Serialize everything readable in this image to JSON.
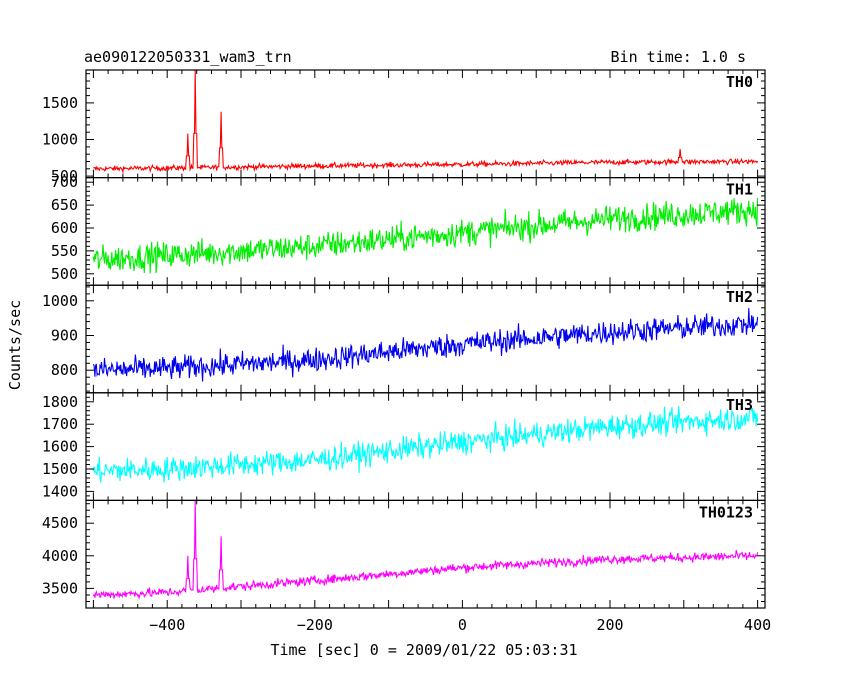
{
  "header": {
    "title": "ae090122050331_wam3_trn",
    "bin_time": "Bin time: 1.0 s"
  },
  "chart_data": {
    "type": "line",
    "xlabel": "Time [sec] 0 = 2009/01/22 05:03:31",
    "ylabel": "Counts/sec",
    "xlim": [
      -510,
      410
    ],
    "x_ticks": [
      -400,
      -200,
      0,
      200,
      400
    ],
    "x_tick_labels": [
      "−400",
      "−200",
      "0",
      "200",
      "400"
    ],
    "x_range": [
      -500,
      400
    ],
    "panels": [
      {
        "name": "TH0",
        "color": "#ff0000",
        "ylim": [
          480,
          1950
        ],
        "y_ticks": [
          500,
          1000,
          1500
        ],
        "trend": {
          "x": [
            -500,
            -400,
            -200,
            0,
            200,
            400
          ],
          "y": [
            600,
            610,
            640,
            660,
            690,
            700
          ]
        },
        "noise": 35,
        "spikes": [
          {
            "x": -372,
            "y": 1080
          },
          {
            "x": -362,
            "y": 1950
          },
          {
            "x": -327,
            "y": 1380
          },
          {
            "x": 295,
            "y": 870
          }
        ]
      },
      {
        "name": "TH1",
        "color": "#00ee00",
        "ylim": [
          475,
          710
        ],
        "y_ticks": [
          500,
          550,
          600,
          650,
          700
        ],
        "trend": {
          "x": [
            -500,
            -400,
            -200,
            0,
            200,
            400
          ],
          "y": [
            530,
            540,
            560,
            590,
            620,
            640
          ]
        },
        "noise": 30,
        "spikes": []
      },
      {
        "name": "TH2",
        "color": "#0000ee",
        "ylim": [
          735,
          1045
        ],
        "y_ticks": [
          800,
          900,
          1000
        ],
        "trend": {
          "x": [
            -500,
            -400,
            -200,
            0,
            200,
            400
          ],
          "y": [
            800,
            805,
            830,
            875,
            910,
            935
          ]
        },
        "noise": 35,
        "spikes": []
      },
      {
        "name": "TH3",
        "color": "#00ffff",
        "ylim": [
          1360,
          1840
        ],
        "y_ticks": [
          1400,
          1500,
          1600,
          1700,
          1800
        ],
        "trend": {
          "x": [
            -500,
            -400,
            -200,
            0,
            200,
            400
          ],
          "y": [
            1490,
            1500,
            1540,
            1620,
            1690,
            1730
          ]
        },
        "noise": 55,
        "spikes": []
      },
      {
        "name": "TH0123",
        "color": "#ff00ff",
        "ylim": [
          3200,
          4850
        ],
        "y_ticks": [
          3500,
          4000,
          4500
        ],
        "trend": {
          "x": [
            -500,
            -400,
            -200,
            0,
            200,
            400
          ],
          "y": [
            3400,
            3440,
            3620,
            3820,
            3950,
            4000
          ]
        },
        "noise": 70,
        "spikes": [
          {
            "x": -372,
            "y": 4000
          },
          {
            "x": -362,
            "y": 4850
          },
          {
            "x": -327,
            "y": 4300
          }
        ]
      }
    ]
  }
}
